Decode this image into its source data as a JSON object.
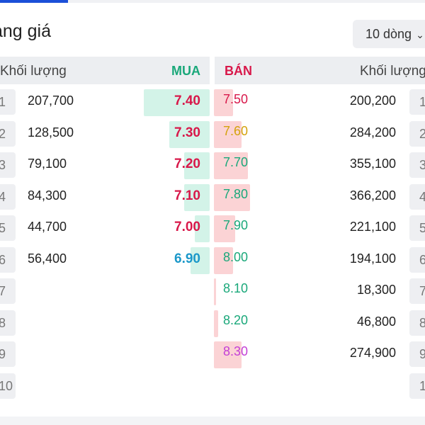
{
  "title": "ảng giá",
  "rows_select": {
    "label": "10 dòng",
    "icon": "chevron-down-icon"
  },
  "header": {
    "buy_volume": "Khối lượng",
    "buy": "MUA",
    "sell": "BÁN",
    "sell_volume": "Khối lượng"
  },
  "colors": {
    "buy": "#1aa87a",
    "sell": "#d8184a",
    "reference": "#d4a20c",
    "ceiling": "#c33fd6",
    "floor": "#1b98c9",
    "buy_bar": "#d3f3e8",
    "sell_bar": "#fbd3d5"
  },
  "rows": [
    {
      "index": "1",
      "buy_volume": "207,700",
      "buy_price": "7.40",
      "buy_color": "#d8184a",
      "buy_bar": 0.31,
      "sell_price": "7.50",
      "sell_color": "#d8184a",
      "sell_volume": "200,200",
      "sell_bar": 0.09
    },
    {
      "index": "2",
      "buy_volume": "128,500",
      "buy_price": "7.30",
      "buy_color": "#d8184a",
      "buy_bar": 0.19,
      "sell_price": "7.60",
      "sell_color": "#d4a20c",
      "sell_volume": "284,200",
      "sell_bar": 0.13
    },
    {
      "index": "3",
      "buy_volume": "79,100",
      "buy_price": "7.20",
      "buy_color": "#d8184a",
      "buy_bar": 0.12,
      "sell_price": "7.70",
      "sell_color": "#1aa87a",
      "sell_volume": "355,100",
      "sell_bar": 0.16
    },
    {
      "index": "4",
      "buy_volume": "84,300",
      "buy_price": "7.10",
      "buy_color": "#d8184a",
      "buy_bar": 0.12,
      "sell_price": "7.80",
      "sell_color": "#1aa87a",
      "sell_volume": "366,200",
      "sell_bar": 0.17
    },
    {
      "index": "5",
      "buy_volume": "44,700",
      "buy_price": "7.00",
      "buy_color": "#d8184a",
      "buy_bar": 0.07,
      "sell_price": "7.90",
      "sell_color": "#1aa87a",
      "sell_volume": "221,100",
      "sell_bar": 0.1
    },
    {
      "index": "6",
      "buy_volume": "56,400",
      "buy_price": "6.90",
      "buy_color": "#1b98c9",
      "buy_bar": 0.09,
      "sell_price": "8.00",
      "sell_color": "#1aa87a",
      "sell_volume": "194,100",
      "sell_bar": 0.09
    },
    {
      "index": "7",
      "buy_volume": "",
      "buy_price": "",
      "buy_color": "#1aa87a",
      "buy_bar": 0,
      "sell_price": "8.10",
      "sell_color": "#1aa87a",
      "sell_volume": "18,300",
      "sell_bar": 0.01
    },
    {
      "index": "8",
      "buy_volume": "",
      "buy_price": "",
      "buy_color": "#1aa87a",
      "buy_bar": 0,
      "sell_price": "8.20",
      "sell_color": "#1aa87a",
      "sell_volume": "46,800",
      "sell_bar": 0.02
    },
    {
      "index": "9",
      "buy_volume": "",
      "buy_price": "",
      "buy_color": "#1aa87a",
      "buy_bar": 0,
      "sell_price": "8.30",
      "sell_color": "#c33fd6",
      "sell_volume": "274,900",
      "sell_bar": 0.13
    },
    {
      "index": "10",
      "buy_volume": "",
      "buy_price": "",
      "buy_color": "#1aa87a",
      "buy_bar": 0,
      "sell_price": "",
      "sell_color": "#1aa87a",
      "sell_volume": "",
      "sell_bar": 0
    }
  ]
}
